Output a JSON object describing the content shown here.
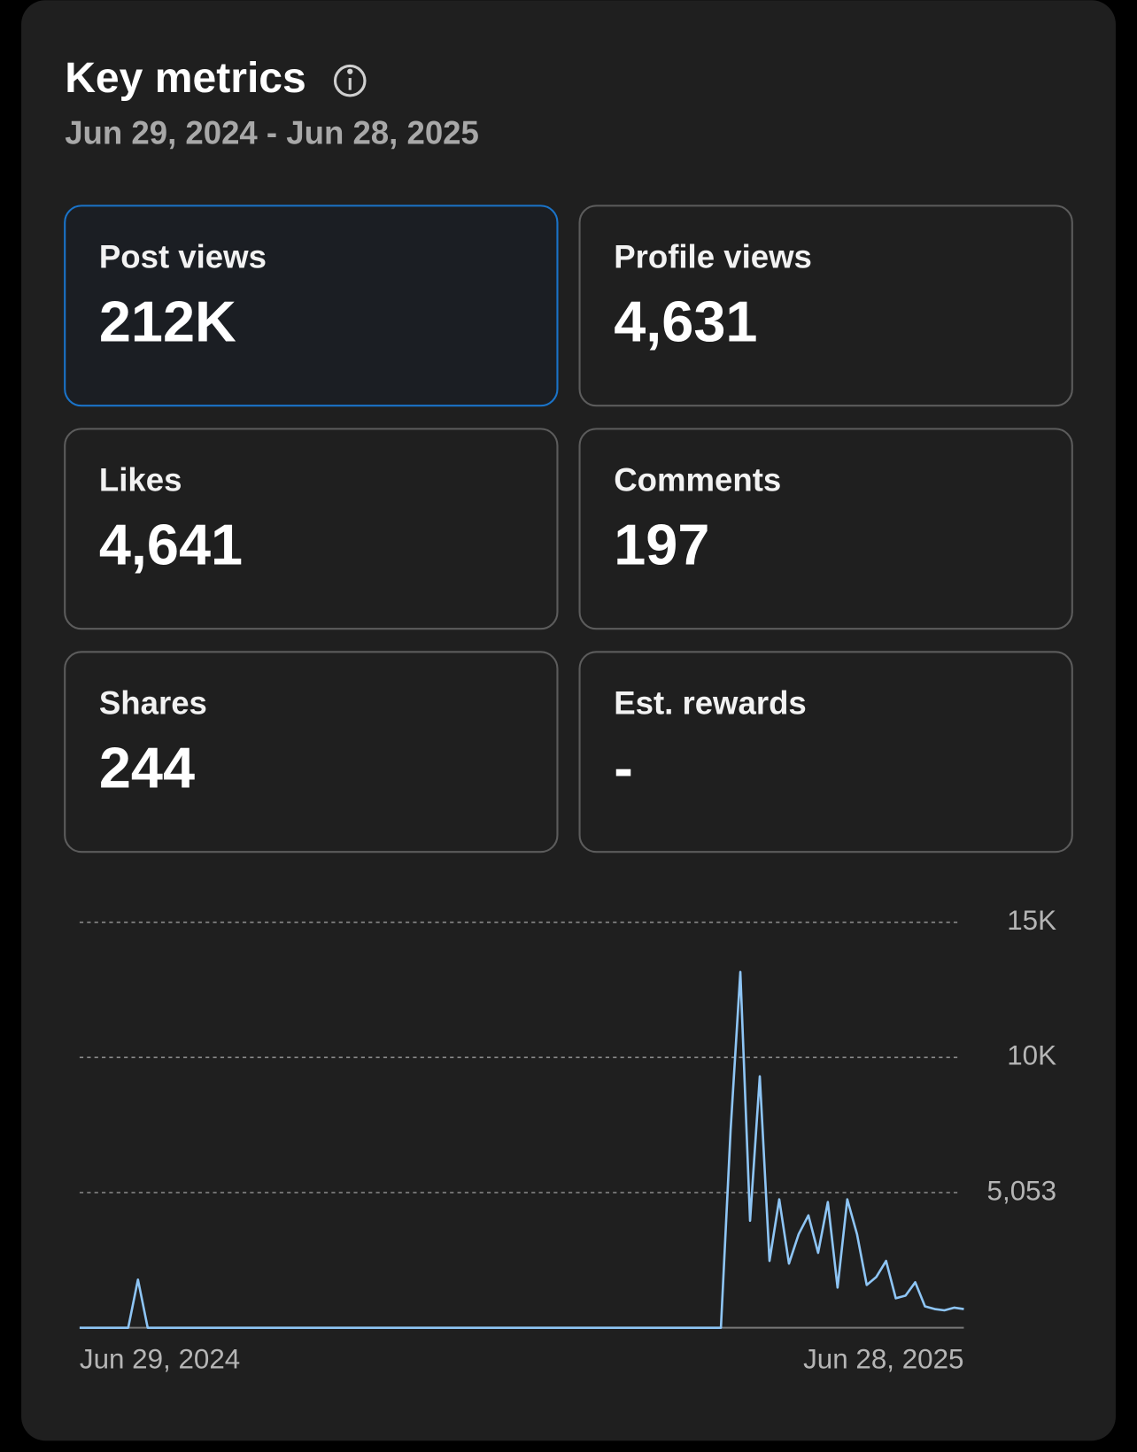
{
  "header": {
    "title": "Key metrics",
    "subtitle": "Jun 29, 2024 - Jun 28, 2025"
  },
  "metrics": [
    {
      "label": "Post views",
      "value": "212K"
    },
    {
      "label": "Profile views",
      "value": "4,631"
    },
    {
      "label": "Likes",
      "value": "4,641"
    },
    {
      "label": "Comments",
      "value": "197"
    },
    {
      "label": "Shares",
      "value": "244"
    },
    {
      "label": "Est. rewards",
      "value": "-"
    }
  ],
  "chart_data": {
    "type": "line",
    "color": "#8ec5f5",
    "grid": true,
    "categories": [
      "Jun 29, 2024",
      null,
      null,
      null,
      null,
      null,
      null,
      null,
      null,
      null,
      null,
      null,
      null,
      null,
      null,
      null,
      null,
      null,
      null,
      null,
      null,
      null,
      null,
      null,
      null,
      null,
      null,
      null,
      null,
      null,
      null,
      null,
      null,
      null,
      null,
      null,
      null,
      null,
      null,
      null,
      null,
      null,
      null,
      null,
      null,
      null,
      null,
      null,
      null,
      null,
      null,
      null,
      null,
      null,
      null,
      null,
      null,
      null,
      null,
      null,
      null,
      null,
      null,
      null,
      null,
      null,
      null,
      null,
      null,
      null,
      null,
      null,
      null,
      null,
      null,
      null,
      null,
      null,
      null,
      null,
      null,
      null,
      null,
      null,
      null,
      null,
      null,
      null,
      null,
      null,
      null,
      "Jun 28, 2025"
    ],
    "values": [
      0,
      0,
      0,
      0,
      0,
      0,
      1800,
      0,
      0,
      0,
      0,
      0,
      0,
      0,
      0,
      0,
      0,
      0,
      0,
      0,
      0,
      0,
      0,
      0,
      0,
      0,
      0,
      0,
      0,
      0,
      0,
      0,
      0,
      0,
      0,
      0,
      0,
      0,
      0,
      0,
      0,
      0,
      0,
      0,
      0,
      0,
      0,
      0,
      0,
      0,
      0,
      0,
      0,
      0,
      0,
      0,
      0,
      0,
      0,
      0,
      0,
      0,
      0,
      0,
      0,
      0,
      0,
      7400,
      13300,
      4000,
      9400,
      2500,
      4800,
      2400,
      3500,
      4200,
      2800,
      4700,
      1500,
      4800,
      3500,
      1600,
      1900,
      2500,
      1100,
      1200,
      1700,
      800,
      700,
      650,
      750,
      700
    ],
    "ylim": [
      0,
      15159
    ],
    "yticks": [
      {
        "value": 5053,
        "label": "5,053"
      },
      {
        "value": 10106,
        "label": "10K"
      },
      {
        "value": 15159,
        "label": "15K"
      }
    ]
  }
}
